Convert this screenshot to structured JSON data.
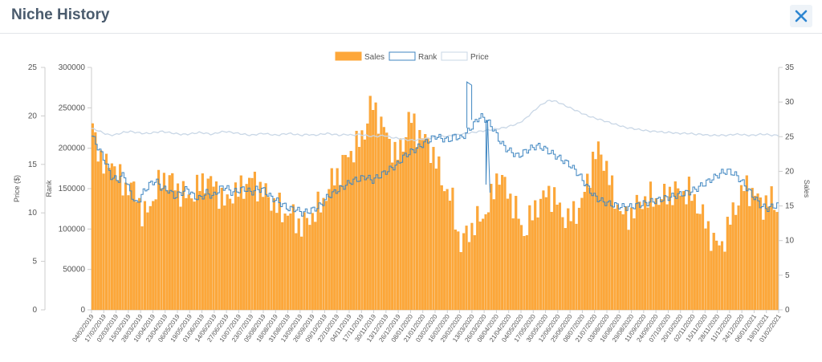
{
  "header": {
    "title": "Niche History"
  },
  "close_icon": "close-icon",
  "colors": {
    "sales": "#fda73a",
    "sales_edge": "#f29a20",
    "rank": "#3f86c1",
    "price": "#c9d7e6"
  },
  "chart_data": {
    "type": "bar",
    "title": "Niche History",
    "legend": [
      "Sales",
      "Rank",
      "Price"
    ],
    "legend_position": "top-center",
    "axes": {
      "price": {
        "label": "Price ($)",
        "min": 0,
        "max": 25,
        "ticks": [
          "0",
          "5",
          "10",
          "15",
          "20",
          "25"
        ]
      },
      "rank": {
        "label": "Rank",
        "min": 0,
        "max": 300000,
        "ticks": [
          "0",
          "50000",
          "100000",
          "150000",
          "200000",
          "250000",
          "300000"
        ]
      },
      "sales": {
        "label": "Sales",
        "min": 0,
        "max": 35,
        "ticks": [
          "0",
          "5",
          "10",
          "15",
          "20",
          "25",
          "30",
          "35"
        ]
      }
    },
    "x_ticks": [
      "04/02/2019",
      "17/02/2019",
      "02/03/2019",
      "15/03/2019",
      "28/03/2019",
      "10/04/2019",
      "23/04/2019",
      "06/05/2019",
      "19/05/2019",
      "01/06/2019",
      "14/06/2019",
      "27/06/2019",
      "10/07/2019",
      "23/07/2019",
      "05/08/2019",
      "18/08/2019",
      "31/08/2019",
      "13/09/2019",
      "26/09/2019",
      "09/10/2019",
      "22/10/2019",
      "04/11/2019",
      "17/11/2019",
      "30/11/2019",
      "13/12/2019",
      "26/12/2019",
      "08/01/2020",
      "21/01/2020",
      "03/02/2020",
      "16/02/2020",
      "29/02/2020",
      "13/03/2020",
      "26/03/2020",
      "08/04/2020",
      "21/04/2020",
      "04/05/2020",
      "17/05/2020",
      "30/05/2020",
      "12/06/2020",
      "25/06/2020",
      "08/07/2020",
      "21/07/2020",
      "03/08/2020",
      "16/08/2020",
      "29/08/2020",
      "11/09/2020",
      "24/09/2020",
      "07/10/2020",
      "20/10/2020",
      "02/11/2020",
      "15/11/2020",
      "28/11/2020",
      "11/12/2020",
      "24/12/2020",
      "06/01/2021",
      "19/01/2021",
      "01/02/2021"
    ],
    "sales_profile": [
      [
        0,
        26
      ],
      [
        1,
        23
      ],
      [
        2,
        20
      ],
      [
        3,
        22
      ],
      [
        4,
        19
      ],
      [
        5,
        18
      ],
      [
        7,
        17
      ],
      [
        8,
        13
      ],
      [
        9,
        15
      ],
      [
        10,
        17
      ],
      [
        11,
        19
      ],
      [
        12,
        19
      ],
      [
        13,
        18
      ],
      [
        14,
        17
      ],
      [
        15,
        16
      ],
      [
        16,
        17
      ],
      [
        17,
        18
      ],
      [
        18,
        19
      ],
      [
        19,
        18
      ],
      [
        20,
        17
      ],
      [
        21,
        15
      ],
      [
        22,
        17
      ],
      [
        23,
        17
      ],
      [
        24,
        18
      ],
      [
        25,
        19
      ],
      [
        26,
        18
      ],
      [
        27,
        17
      ],
      [
        28,
        16
      ],
      [
        29,
        15
      ],
      [
        30,
        14
      ],
      [
        31,
        14
      ],
      [
        32,
        13
      ],
      [
        33,
        12
      ],
      [
        34,
        13
      ],
      [
        35,
        14
      ],
      [
        36,
        15
      ],
      [
        37,
        17
      ],
      [
        38,
        19
      ],
      [
        39,
        20
      ],
      [
        40,
        22
      ],
      [
        41,
        23
      ],
      [
        42,
        24
      ],
      [
        43,
        26
      ],
      [
        44,
        30
      ],
      [
        45,
        28
      ],
      [
        46,
        26
      ],
      [
        47,
        24
      ],
      [
        48,
        22
      ],
      [
        49,
        24
      ],
      [
        50,
        28
      ],
      [
        51,
        26
      ],
      [
        52,
        25
      ],
      [
        53,
        24
      ],
      [
        54,
        22
      ],
      [
        55,
        19
      ],
      [
        56,
        17
      ],
      [
        57,
        15
      ],
      [
        58,
        9
      ],
      [
        59,
        11
      ],
      [
        60,
        12
      ],
      [
        61,
        13
      ],
      [
        62,
        14
      ],
      [
        63,
        16
      ],
      [
        64,
        20
      ],
      [
        65,
        18
      ],
      [
        66,
        16
      ],
      [
        67,
        14
      ],
      [
        68,
        11
      ],
      [
        69,
        13
      ],
      [
        70,
        15
      ],
      [
        71,
        16
      ],
      [
        72,
        17
      ],
      [
        73,
        16
      ],
      [
        74,
        14
      ],
      [
        75,
        13
      ],
      [
        76,
        14
      ],
      [
        77,
        15
      ],
      [
        78,
        18
      ],
      [
        79,
        22
      ],
      [
        80,
        23
      ],
      [
        81,
        21
      ],
      [
        82,
        17
      ],
      [
        83,
        15
      ],
      [
        84,
        13
      ],
      [
        85,
        14
      ],
      [
        86,
        15
      ],
      [
        87,
        16
      ],
      [
        88,
        16
      ],
      [
        89,
        16
      ],
      [
        90,
        16
      ],
      [
        91,
        17
      ],
      [
        92,
        17
      ],
      [
        93,
        17
      ],
      [
        94,
        17
      ],
      [
        95,
        16
      ],
      [
        96,
        14
      ],
      [
        97,
        12
      ],
      [
        98,
        10
      ],
      [
        99,
        9
      ],
      [
        100,
        11
      ],
      [
        101,
        14
      ],
      [
        102,
        16
      ],
      [
        103,
        18
      ],
      [
        104,
        17
      ],
      [
        105,
        16
      ],
      [
        106,
        15
      ],
      [
        107,
        16
      ],
      [
        108,
        15
      ]
    ],
    "rank_profile": [
      [
        0,
        215000
      ],
      [
        1,
        200000
      ],
      [
        2,
        185000
      ],
      [
        3,
        165000
      ],
      [
        4,
        160000
      ],
      [
        5,
        168000
      ],
      [
        6,
        145000
      ],
      [
        7,
        130000
      ],
      [
        8,
        145000
      ],
      [
        9,
        155000
      ],
      [
        10,
        160000
      ],
      [
        11,
        150000
      ],
      [
        12,
        148000
      ],
      [
        13,
        140000
      ],
      [
        14,
        145000
      ],
      [
        15,
        150000
      ],
      [
        16,
        140000
      ],
      [
        17,
        138000
      ],
      [
        18,
        145000
      ],
      [
        19,
        140000
      ],
      [
        20,
        150000
      ],
      [
        21,
        152000
      ],
      [
        22,
        145000
      ],
      [
        23,
        148000
      ],
      [
        24,
        150000
      ],
      [
        25,
        145000
      ],
      [
        26,
        150000
      ],
      [
        27,
        148000
      ],
      [
        28,
        140000
      ],
      [
        29,
        135000
      ],
      [
        30,
        130000
      ],
      [
        31,
        125000
      ],
      [
        32,
        125000
      ],
      [
        33,
        120000
      ],
      [
        34,
        122000
      ],
      [
        35,
        125000
      ],
      [
        36,
        130000
      ],
      [
        37,
        140000
      ],
      [
        38,
        145000
      ],
      [
        39,
        150000
      ],
      [
        40,
        155000
      ],
      [
        41,
        160000
      ],
      [
        42,
        162000
      ],
      [
        43,
        165000
      ],
      [
        44,
        160000
      ],
      [
        45,
        165000
      ],
      [
        46,
        170000
      ],
      [
        47,
        175000
      ],
      [
        48,
        180000
      ],
      [
        49,
        190000
      ],
      [
        50,
        195000
      ],
      [
        51,
        200000
      ],
      [
        52,
        205000
      ],
      [
        53,
        210000
      ],
      [
        54,
        215000
      ],
      [
        55,
        212000
      ],
      [
        56,
        210000
      ],
      [
        57,
        215000
      ],
      [
        58,
        212000
      ],
      [
        59,
        220000
      ],
      [
        60,
        230000
      ],
      [
        61,
        240000
      ],
      [
        62,
        235000
      ],
      [
        63,
        225000
      ],
      [
        64,
        210000
      ],
      [
        65,
        200000
      ],
      [
        66,
        195000
      ],
      [
        67,
        190000
      ],
      [
        68,
        196000
      ],
      [
        69,
        200000
      ],
      [
        70,
        203000
      ],
      [
        71,
        200000
      ],
      [
        72,
        195000
      ],
      [
        73,
        190000
      ],
      [
        74,
        185000
      ],
      [
        75,
        180000
      ],
      [
        76,
        172000
      ],
      [
        77,
        162000
      ],
      [
        78,
        150000
      ],
      [
        79,
        140000
      ],
      [
        80,
        135000
      ],
      [
        81,
        132000
      ],
      [
        82,
        130000
      ],
      [
        83,
        128000
      ],
      [
        84,
        127000
      ],
      [
        85,
        128000
      ],
      [
        86,
        130000
      ],
      [
        87,
        132000
      ],
      [
        88,
        134000
      ],
      [
        89,
        136000
      ],
      [
        90,
        138000
      ],
      [
        91,
        140000
      ],
      [
        92,
        142000
      ],
      [
        93,
        144000
      ],
      [
        94,
        146000
      ],
      [
        95,
        150000
      ],
      [
        96,
        155000
      ],
      [
        97,
        160000
      ],
      [
        98,
        165000
      ],
      [
        99,
        170000
      ],
      [
        100,
        172000
      ],
      [
        101,
        168000
      ],
      [
        102,
        160000
      ],
      [
        103,
        150000
      ],
      [
        104,
        140000
      ],
      [
        105,
        130000
      ],
      [
        106,
        125000
      ],
      [
        107,
        128000
      ],
      [
        108,
        130000
      ]
    ],
    "price_profile": [
      [
        0,
        18.7
      ],
      [
        1,
        18.5
      ],
      [
        2,
        18.2
      ],
      [
        3,
        18.0
      ],
      [
        4,
        18.1
      ],
      [
        5,
        18.3
      ],
      [
        6,
        18.4
      ],
      [
        7,
        18.3
      ],
      [
        8,
        18.2
      ],
      [
        9,
        18.2
      ],
      [
        10,
        18.3
      ],
      [
        11,
        18.4
      ],
      [
        12,
        18.3
      ],
      [
        13,
        18.2
      ],
      [
        14,
        18.1
      ],
      [
        15,
        18.1
      ],
      [
        16,
        18.2
      ],
      [
        17,
        18.3
      ],
      [
        18,
        18.2
      ],
      [
        19,
        18.1
      ],
      [
        20,
        18.3
      ],
      [
        21,
        18.4
      ],
      [
        22,
        18.3
      ],
      [
        23,
        18.2
      ],
      [
        24,
        18.1
      ],
      [
        25,
        18.0
      ],
      [
        26,
        18.1
      ],
      [
        27,
        18.2
      ],
      [
        28,
        18.1
      ],
      [
        29,
        18.0
      ],
      [
        30,
        18.1
      ],
      [
        31,
        18.2
      ],
      [
        32,
        18.1
      ],
      [
        33,
        18.0
      ],
      [
        34,
        18.1
      ],
      [
        35,
        18.0
      ],
      [
        36,
        18.1
      ],
      [
        37,
        18.2
      ],
      [
        38,
        18.1
      ],
      [
        39,
        18.0
      ],
      [
        40,
        18.1
      ],
      [
        41,
        18.0
      ],
      [
        42,
        18.1
      ],
      [
        43,
        18.0
      ],
      [
        44,
        17.9
      ],
      [
        45,
        17.9
      ],
      [
        46,
        18.0
      ],
      [
        47,
        17.8
      ],
      [
        48,
        17.7
      ],
      [
        49,
        17.6
      ],
      [
        50,
        17.5
      ],
      [
        51,
        17.5
      ],
      [
        52,
        17.6
      ],
      [
        53,
        17.7
      ],
      [
        54,
        17.8
      ],
      [
        55,
        17.9
      ],
      [
        56,
        17.9
      ],
      [
        57,
        18.0
      ],
      [
        58,
        18.1
      ],
      [
        59,
        18.2
      ],
      [
        60,
        18.3
      ],
      [
        61,
        18.4
      ],
      [
        62,
        18.5
      ],
      [
        63,
        18.6
      ],
      [
        64,
        18.7
      ],
      [
        65,
        18.8
      ],
      [
        66,
        19.0
      ],
      [
        67,
        19.2
      ],
      [
        68,
        19.6
      ],
      [
        69,
        20.2
      ],
      [
        70,
        20.8
      ],
      [
        71,
        21.3
      ],
      [
        72,
        21.6
      ],
      [
        73,
        21.5
      ],
      [
        74,
        21.2
      ],
      [
        75,
        20.9
      ],
      [
        76,
        20.6
      ],
      [
        77,
        20.3
      ],
      [
        78,
        20.0
      ],
      [
        79,
        19.8
      ],
      [
        80,
        19.6
      ],
      [
        81,
        19.4
      ],
      [
        82,
        19.2
      ],
      [
        83,
        19.0
      ],
      [
        84,
        18.8
      ],
      [
        85,
        18.7
      ],
      [
        86,
        18.6
      ],
      [
        87,
        18.5
      ],
      [
        88,
        18.4
      ],
      [
        89,
        18.4
      ],
      [
        90,
        18.3
      ],
      [
        91,
        18.3
      ],
      [
        92,
        18.2
      ],
      [
        93,
        18.2
      ],
      [
        94,
        18.2
      ],
      [
        95,
        18.1
      ],
      [
        96,
        18.1
      ],
      [
        97,
        18.0
      ],
      [
        98,
        18.0
      ],
      [
        99,
        18.0
      ],
      [
        100,
        18.0
      ],
      [
        101,
        18.1
      ],
      [
        102,
        18.1
      ],
      [
        103,
        18.0
      ],
      [
        104,
        18.0
      ],
      [
        105,
        18.1
      ],
      [
        106,
        18.1
      ],
      [
        107,
        18.0
      ],
      [
        108,
        18.0
      ]
    ],
    "n_bars": 250
  }
}
